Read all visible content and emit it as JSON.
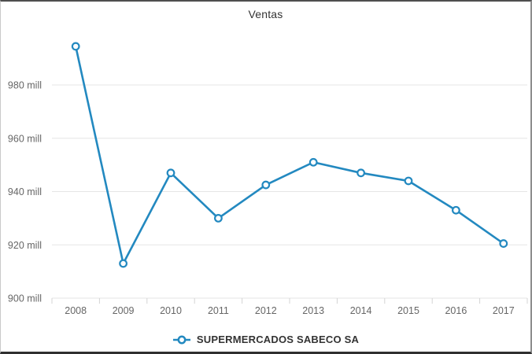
{
  "title": {
    "text": "Ventas"
  },
  "legend": {
    "label": "SUPERMERCADOS SABECO SA"
  },
  "colors": {
    "line": "#2389c0",
    "axis_label": "#666666",
    "title_text": "#333333",
    "gridline": "#e6e6e6",
    "tick": "#d4d4d4"
  },
  "chart_data": {
    "type": "line",
    "title": "Ventas",
    "xlabel": "",
    "ylabel": "",
    "y_unit": "mill",
    "categories": [
      "2008",
      "2009",
      "2010",
      "2011",
      "2012",
      "2013",
      "2014",
      "2015",
      "2016",
      "2017"
    ],
    "series": [
      {
        "name": "SUPERMERCADOS SABECO SA",
        "color": "#2389c0",
        "marker": "open-circle",
        "values": [
          994.5,
          913,
          947,
          930,
          942.5,
          951,
          947,
          944,
          933,
          920.5
        ]
      }
    ],
    "yticks": [
      900,
      920,
      940,
      960,
      980
    ],
    "ylim": [
      900,
      1000
    ],
    "grid": true,
    "legend_position": "bottom"
  }
}
